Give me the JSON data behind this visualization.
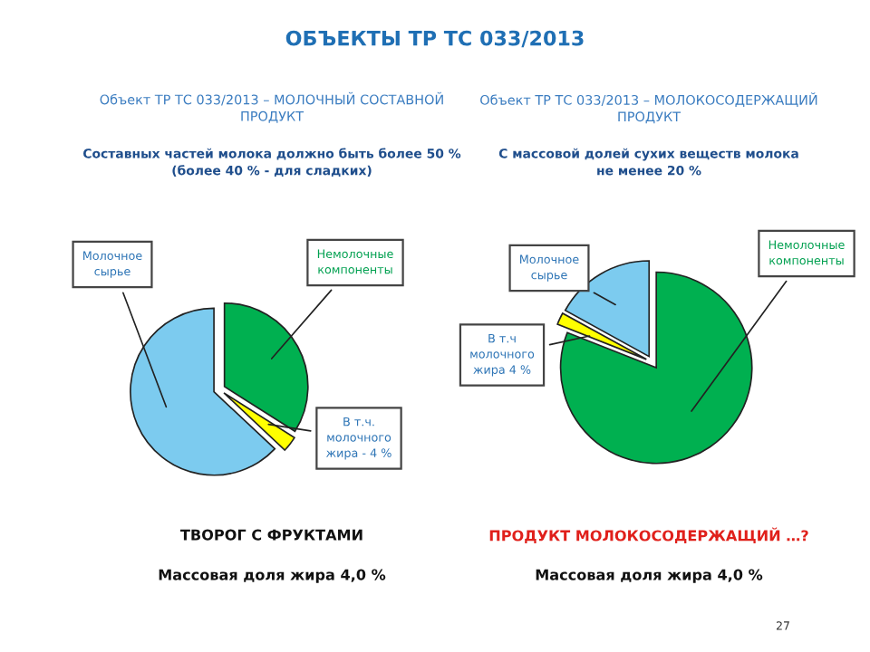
{
  "chart_data": [
    {
      "type": "other",
      "title": "ОБЪЕКТЫ ТР ТС 033/2013",
      "annotations": [
        "27"
      ]
    },
    {
      "type": "pie",
      "title": "Объект ТР ТС 033/2013 – МОЛОЧНЫЙ СОСТАВНОЙ\nПРОДУКТ",
      "subtitle": "Составных частей молока должно быть более 50 %\n(более 40 % - для сладких)",
      "categories": [
        "Немолочные\nкомпоненты",
        "В т.ч.\nмолочного\nжира - 4 %",
        "Молочное\nсырье"
      ],
      "values": [
        34,
        3,
        63
      ],
      "colors": [
        "#00b050",
        "#ffff00",
        "#7ccbef"
      ],
      "annotations": [
        "ТВОРОГ С ФРУКТАМИ",
        "Массовая доля жира 4,0 %"
      ]
    },
    {
      "type": "pie",
      "title": "Объект ТР ТС 033/2013 – МОЛОКОСОДЕРЖАЩИЙ\nПРОДУКТ",
      "subtitle": "С массовой долей сухих веществ молока\nне менее 20 %",
      "categories": [
        "Немолочные\nкомпоненты",
        "В т.ч\nмолочного\nжира 4 %",
        "Молочное\nсырье"
      ],
      "values": [
        81,
        2,
        17
      ],
      "colors": [
        "#00b050",
        "#ffff00",
        "#7ccbef"
      ],
      "annotations": [
        "ПРОДУКТ МОЛОКОСОДЕРЖАЩИЙ …?",
        "Массовая доля жира 4,0 %"
      ]
    }
  ]
}
